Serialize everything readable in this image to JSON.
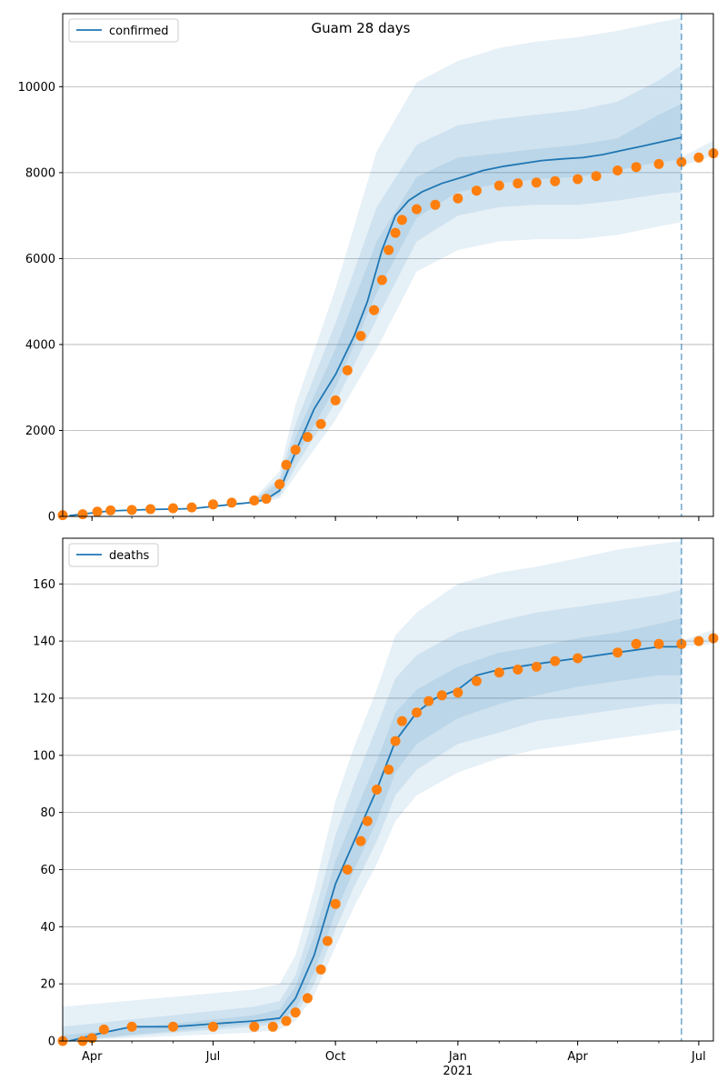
{
  "colors": {
    "model": "#1f77b4",
    "observed": "#ff7f0e",
    "band": "#1f77b4",
    "grid": "#b0b0b0"
  },
  "chart_data": [
    {
      "type": "line",
      "title": "Guam 28 days",
      "legend": [
        "confirmed"
      ],
      "legend_placement": "top-left",
      "grid": "horizontal",
      "xlim": [
        "2020-03-10",
        "2021-07-12"
      ],
      "ylim": [
        0,
        11700
      ],
      "yticks": [
        0,
        2000,
        4000,
        6000,
        8000,
        10000
      ],
      "forecast_date": "2021-06-18",
      "series": [
        {
          "name": "confirmed",
          "x": [
            "2020-03-15",
            "2020-04-15",
            "2020-05-15",
            "2020-06-15",
            "2020-07-15",
            "2020-08-01",
            "2020-08-10",
            "2020-08-20",
            "2020-09-01",
            "2020-09-15",
            "2020-10-01",
            "2020-10-15",
            "2020-10-25",
            "2020-11-05",
            "2020-11-15",
            "2020-11-25",
            "2020-12-05",
            "2020-12-20",
            "2021-01-05",
            "2021-01-20",
            "2021-02-05",
            "2021-02-20",
            "2021-03-05",
            "2021-03-20",
            "2021-04-05",
            "2021-04-20",
            "2021-05-05",
            "2021-05-20",
            "2021-06-05",
            "2021-06-18"
          ],
          "y": [
            20,
            130,
            160,
            180,
            280,
            330,
            400,
            600,
            1500,
            2500,
            3300,
            4200,
            5000,
            6200,
            7000,
            7350,
            7550,
            7750,
            7900,
            8050,
            8150,
            8220,
            8280,
            8320,
            8350,
            8420,
            8520,
            8620,
            8730,
            8820
          ]
        },
        {
          "name": "observed",
          "x": [
            "2020-03-10",
            "2020-03-25",
            "2020-04-05",
            "2020-04-15",
            "2020-05-01",
            "2020-05-15",
            "2020-06-01",
            "2020-06-15",
            "2020-07-01",
            "2020-07-15",
            "2020-08-01",
            "2020-08-10",
            "2020-08-20",
            "2020-08-25",
            "2020-09-01",
            "2020-09-10",
            "2020-09-20",
            "2020-10-01",
            "2020-10-10",
            "2020-10-20",
            "2020-10-30",
            "2020-11-05",
            "2020-11-10",
            "2020-11-15",
            "2020-11-20",
            "2020-12-01",
            "2020-12-15",
            "2021-01-01",
            "2021-01-15",
            "2021-02-01",
            "2021-02-15",
            "2021-03-01",
            "2021-03-15",
            "2021-04-01",
            "2021-04-15",
            "2021-05-01",
            "2021-05-15",
            "2021-06-01",
            "2021-06-18",
            "2021-07-01",
            "2021-07-12"
          ],
          "y": [
            30,
            50,
            110,
            140,
            150,
            170,
            190,
            210,
            280,
            320,
            370,
            410,
            750,
            1200,
            1550,
            1850,
            2150,
            2700,
            3400,
            4200,
            4800,
            5500,
            6200,
            6600,
            6900,
            7150,
            7250,
            7400,
            7580,
            7700,
            7750,
            7770,
            7800,
            7850,
            7920,
            8050,
            8130,
            8200,
            8250,
            8350,
            8450
          ]
        },
        {
          "name": "band_50",
          "x": [
            "2020-08-01",
            "2020-08-20",
            "2020-09-01",
            "2020-10-01",
            "2020-11-01",
            "2020-12-01",
            "2021-01-01",
            "2021-02-01",
            "2021-03-01",
            "2021-04-01",
            "2021-05-01",
            "2021-06-01",
            "2021-06-18"
          ],
          "lower": [
            320,
            550,
            1350,
            3000,
            5200,
            6950,
            7550,
            7750,
            7850,
            7900,
            8050,
            8250,
            8300
          ],
          "upper": [
            360,
            800,
            1850,
            3900,
            6400,
            7900,
            8350,
            8450,
            8550,
            8650,
            8800,
            9350,
            9600
          ]
        },
        {
          "name": "band_80",
          "x": [
            "2020-08-01",
            "2020-08-20",
            "2020-09-01",
            "2020-10-01",
            "2020-11-01",
            "2020-12-01",
            "2021-01-01",
            "2021-02-01",
            "2021-03-01",
            "2021-04-01",
            "2021-05-01",
            "2021-06-01",
            "2021-06-18"
          ],
          "lower": [
            300,
            480,
            1150,
            2650,
            4600,
            6400,
            7000,
            7200,
            7250,
            7250,
            7350,
            7500,
            7550
          ],
          "upper": [
            390,
            900,
            2150,
            4500,
            7200,
            8650,
            9100,
            9250,
            9350,
            9450,
            9650,
            10150,
            10500
          ]
        },
        {
          "name": "band_95",
          "x": [
            "2020-08-01",
            "2020-08-20",
            "2020-09-01",
            "2020-10-01",
            "2020-11-01",
            "2020-12-01",
            "2021-01-01",
            "2021-02-01",
            "2021-03-01",
            "2021-04-01",
            "2021-05-01",
            "2021-06-01",
            "2021-06-18"
          ],
          "lower": [
            280,
            420,
            950,
            2250,
            3900,
            5700,
            6200,
            6400,
            6450,
            6450,
            6550,
            6750,
            6850
          ],
          "upper": [
            420,
            1050,
            2600,
            5300,
            8500,
            10100,
            10600,
            10900,
            11050,
            11150,
            11300,
            11500,
            11600
          ]
        },
        {
          "name": "band_tail",
          "x": [
            "2021-06-18",
            "2021-07-12"
          ],
          "lower": [
            8150,
            8400
          ],
          "upper": [
            8350,
            8750
          ]
        }
      ]
    },
    {
      "type": "line",
      "legend": [
        "deaths"
      ],
      "legend_placement": "top-left",
      "grid": "horizontal",
      "xlim": [
        "2020-03-10",
        "2021-07-12"
      ],
      "ylim": [
        0,
        176
      ],
      "yticks": [
        0,
        20,
        40,
        60,
        80,
        100,
        120,
        140,
        160
      ],
      "xticks": [
        {
          "date": "2020-04-01",
          "label": "Apr"
        },
        {
          "date": "2020-07-01",
          "label": "Jul"
        },
        {
          "date": "2020-10-01",
          "label": "Oct"
        },
        {
          "date": "2021-01-01",
          "label": "Jan",
          "sublabel": "2021"
        },
        {
          "date": "2021-04-01",
          "label": "Apr"
        },
        {
          "date": "2021-07-01",
          "label": "Jul"
        }
      ],
      "forecast_date": "2021-06-18",
      "series": [
        {
          "name": "deaths",
          "x": [
            "2020-03-15",
            "2020-04-10",
            "2020-05-01",
            "2020-06-01",
            "2020-07-01",
            "2020-08-01",
            "2020-08-20",
            "2020-09-01",
            "2020-09-15",
            "2020-10-01",
            "2020-10-15",
            "2020-11-01",
            "2020-11-15",
            "2020-12-01",
            "2020-12-15",
            "2021-01-01",
            "2021-01-15",
            "2021-02-01",
            "2021-03-01",
            "2021-04-01",
            "2021-05-01",
            "2021-06-01",
            "2021-06-18"
          ],
          "y": [
            0,
            3,
            5,
            5,
            6,
            7,
            8,
            15,
            30,
            55,
            70,
            88,
            105,
            115,
            120,
            123,
            128,
            130,
            132,
            134,
            136,
            138,
            138
          ]
        },
        {
          "name": "observed",
          "x": [
            "2020-03-10",
            "2020-03-25",
            "2020-04-01",
            "2020-04-10",
            "2020-05-01",
            "2020-06-01",
            "2020-07-01",
            "2020-08-01",
            "2020-08-15",
            "2020-08-25",
            "2020-09-01",
            "2020-09-10",
            "2020-09-20",
            "2020-09-25",
            "2020-10-01",
            "2020-10-10",
            "2020-10-20",
            "2020-10-25",
            "2020-11-01",
            "2020-11-10",
            "2020-11-15",
            "2020-11-20",
            "2020-12-01",
            "2020-12-10",
            "2020-12-20",
            "2021-01-01",
            "2021-01-15",
            "2021-02-01",
            "2021-02-15",
            "2021-03-01",
            "2021-03-15",
            "2021-04-01",
            "2021-05-01",
            "2021-05-15",
            "2021-06-01",
            "2021-06-18",
            "2021-07-01",
            "2021-07-12"
          ],
          "y": [
            0,
            0,
            1,
            4,
            5,
            5,
            5,
            5,
            5,
            7,
            10,
            15,
            25,
            35,
            48,
            60,
            70,
            77,
            88,
            95,
            105,
            112,
            115,
            119,
            121,
            122,
            126,
            129,
            130,
            131,
            133,
            134,
            136,
            139,
            139,
            139,
            140,
            141
          ]
        },
        {
          "name": "band_50",
          "x": [
            "2020-03-10",
            "2020-08-01",
            "2020-08-20",
            "2020-09-01",
            "2020-09-15",
            "2020-10-01",
            "2020-10-15",
            "2020-11-01",
            "2020-11-15",
            "2020-12-01",
            "2021-01-01",
            "2021-02-01",
            "2021-03-01",
            "2021-04-01",
            "2021-05-01",
            "2021-06-01",
            "2021-06-18"
          ],
          "lower": [
            0,
            6,
            7,
            11,
            24,
            45,
            60,
            77,
            94,
            104,
            113,
            118,
            121,
            124,
            126,
            128,
            128
          ],
          "upper": [
            2,
            9,
            11,
            19,
            37,
            63,
            79,
            98,
            115,
            123,
            131,
            136,
            138,
            141,
            143,
            146,
            148
          ]
        },
        {
          "name": "band_80",
          "x": [
            "2020-03-10",
            "2020-08-01",
            "2020-08-20",
            "2020-09-01",
            "2020-09-15",
            "2020-10-01",
            "2020-10-15",
            "2020-11-01",
            "2020-11-15",
            "2020-12-01",
            "2021-01-01",
            "2021-02-01",
            "2021-03-01",
            "2021-04-01",
            "2021-05-01",
            "2021-06-01",
            "2021-06-18"
          ],
          "lower": [
            0,
            5,
            6,
            9,
            20,
            39,
            54,
            70,
            86,
            95,
            104,
            108,
            112,
            114,
            116,
            118,
            118
          ],
          "upper": [
            5,
            12,
            14,
            23,
            44,
            72,
            90,
            110,
            127,
            135,
            143,
            147,
            150,
            152,
            154,
            156,
            158
          ]
        },
        {
          "name": "band_95",
          "x": [
            "2020-03-10",
            "2020-08-01",
            "2020-08-20",
            "2020-09-01",
            "2020-09-15",
            "2020-10-01",
            "2020-10-15",
            "2020-11-01",
            "2020-11-15",
            "2020-12-01",
            "2021-01-01",
            "2021-02-01",
            "2021-03-01",
            "2021-04-01",
            "2021-05-01",
            "2021-06-01",
            "2021-06-18"
          ],
          "lower": [
            0,
            3,
            4,
            7,
            16,
            33,
            47,
            62,
            77,
            86,
            94,
            99,
            102,
            104,
            106,
            108,
            109
          ],
          "upper": [
            12,
            18,
            20,
            30,
            53,
            84,
            103,
            123,
            142,
            150,
            160,
            164,
            166,
            169,
            172,
            174,
            175
          ]
        },
        {
          "name": "band_tail",
          "x": [
            "2021-06-18",
            "2021-07-12"
          ],
          "lower": [
            138,
            139
          ],
          "upper": [
            140,
            144
          ]
        }
      ]
    }
  ]
}
